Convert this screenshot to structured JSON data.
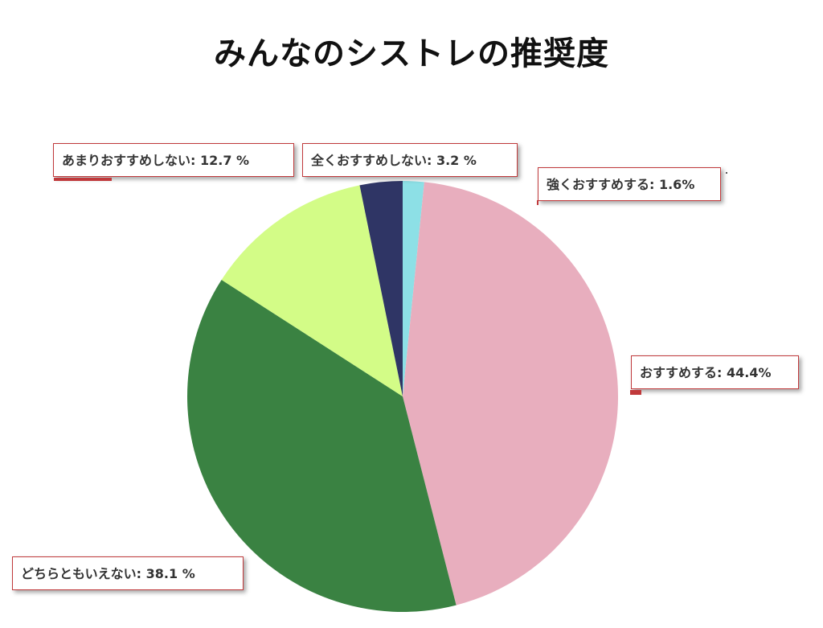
{
  "chart_data": {
    "type": "pie",
    "title": "みんなのシストレの推奨度",
    "slices": [
      {
        "label": "強くおすすめする",
        "value": 1.6,
        "display": "強くおすすめする: 1.6%",
        "color": "#8de0e6"
      },
      {
        "label": "おすすめする",
        "value": 44.4,
        "display": "おすすめする: 44.4%",
        "color": "#e8aebe"
      },
      {
        "label": "どちらともいえない",
        "value": 38.1,
        "display": "どちらともいえない: 38.1 %",
        "color": "#3a8242"
      },
      {
        "label": "あまりおすすめしない",
        "value": 12.7,
        "display": "あまりおすすめしない: 12.7 %",
        "color": "#d3fc87"
      },
      {
        "label": "全くおすすめしない",
        "value": 3.2,
        "display": "全くおすすめしない: 3.2 %",
        "color": "#2f3565"
      }
    ],
    "start_angle_deg": 0,
    "direction": "clockwise",
    "legend": "none",
    "label_style": "callout-boxes"
  }
}
